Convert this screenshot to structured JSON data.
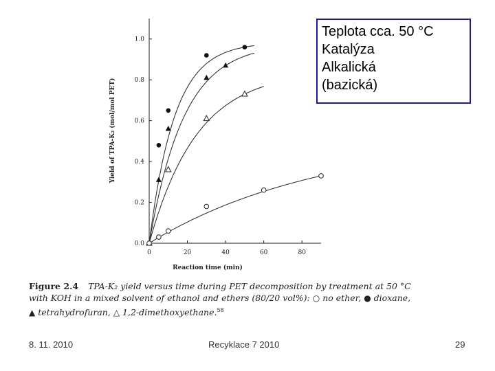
{
  "chart_data": {
    "type": "scatter",
    "ylabel": "Yield of TPA-K₂ (mol/mol PET)",
    "xlabel": "Reaction time (min)",
    "xlim": [
      0,
      90
    ],
    "ylim": [
      0,
      1.1
    ],
    "x_ticks": [
      0,
      20,
      40,
      60,
      80
    ],
    "y_ticks": [
      0.0,
      0.2,
      0.4,
      0.6,
      0.8,
      1.0
    ],
    "x_tick_labels": [
      "0",
      "20",
      "40",
      "60",
      "80"
    ],
    "y_tick_labels": [
      "0.0",
      "0.2",
      "0.4",
      "0.6",
      "0.8",
      "1.0"
    ],
    "grid": false,
    "series": [
      {
        "marker": "filled-circle",
        "x": [
          0,
          5,
          10,
          30,
          50
        ],
        "y": [
          0.0,
          0.48,
          0.65,
          0.92,
          0.96
        ],
        "fit_k": 0.075
      },
      {
        "marker": "filled-triangle",
        "x": [
          0,
          5,
          10,
          30,
          40
        ],
        "y": [
          0.0,
          0.31,
          0.56,
          0.81,
          0.87
        ],
        "fit_k": 0.055
      },
      {
        "marker": "open-triangle",
        "x": [
          0,
          10,
          30,
          50
        ],
        "y": [
          0.0,
          0.36,
          0.61,
          0.73
        ],
        "fit_k": 0.04
      },
      {
        "marker": "open-circle",
        "x": [
          0,
          5,
          10,
          30,
          60,
          90
        ],
        "y": [
          0.0,
          0.03,
          0.06,
          0.18,
          0.26,
          0.33
        ],
        "fit_k": 0.011
      }
    ]
  },
  "info_box": {
    "line1": "Teplota cca. 50 °C",
    "line2": "Katalýza",
    "line3": "Alkalická",
    "line4": "(bazická)"
  },
  "caption": {
    "figure_label": "Figure 2.4",
    "part1": "TPA-K₂ yield versus time during PET decomposition by treatment at 50 °C with KOH in a mixed solvent of ethanol and ethers (80/20 vol%):",
    "sym_open_circle": "○",
    "part2": "no ether,",
    "sym_filled_circle": "●",
    "part3": "dioxane,",
    "sym_filled_triangle": "▲",
    "part4": "tetrahydrofuran,",
    "sym_open_triangle": "△",
    "part5": "1,2-dimethoxyethane.",
    "ref": "58"
  },
  "footer": {
    "date": "8. 11. 2010",
    "center": "Recyklace 7 2010",
    "page": "29"
  }
}
